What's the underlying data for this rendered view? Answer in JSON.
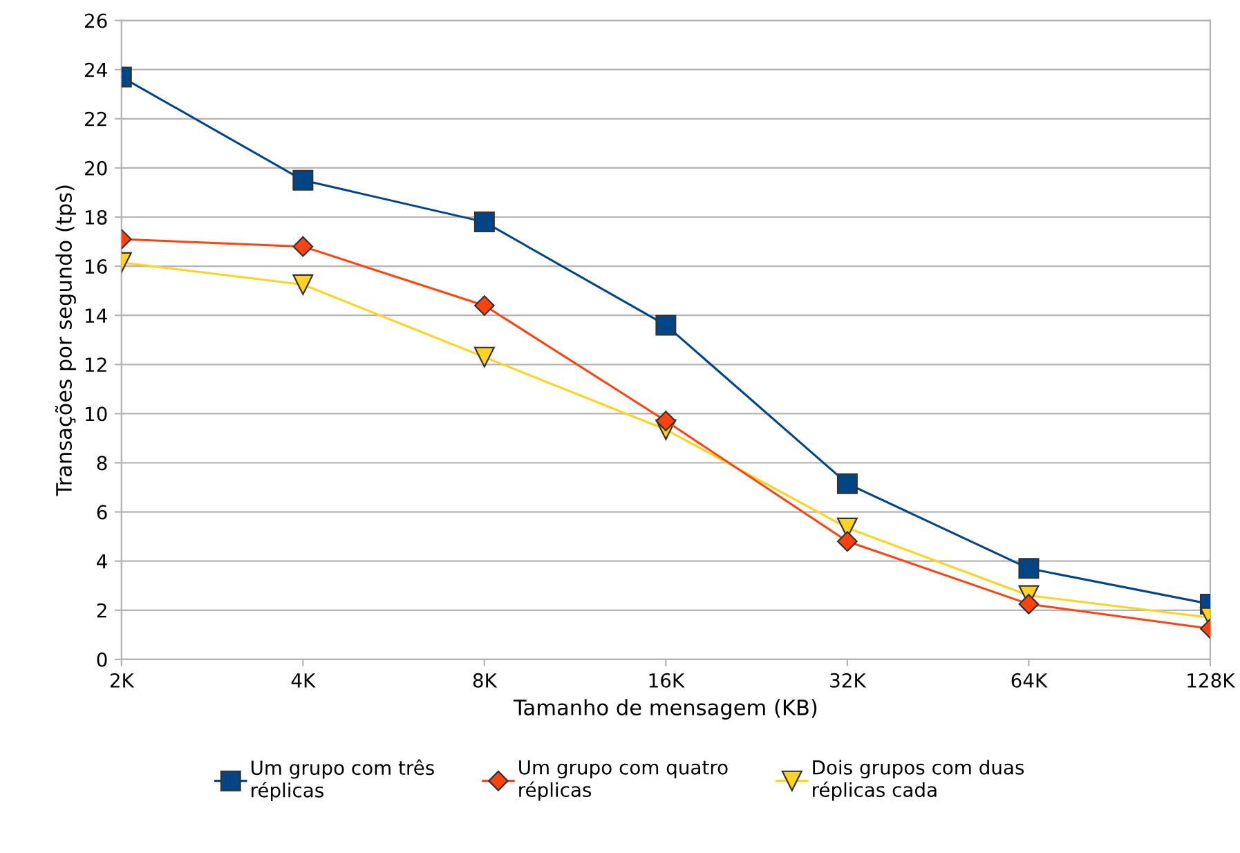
{
  "chart_data": {
    "type": "line",
    "xlabel": "Tamanho de mensagem (KB)",
    "ylabel": "Transações por segundo (tps)",
    "categories": [
      "2K",
      "4K",
      "8K",
      "16K",
      "32K",
      "64K",
      "128K"
    ],
    "series": [
      {
        "name": "Um grupo com três réplicas",
        "color": "#004586",
        "marker": "square",
        "values": [
          23.7,
          19.5,
          17.8,
          13.6,
          7.15,
          3.7,
          2.25
        ]
      },
      {
        "name": "Um grupo com quatro réplicas",
        "color": "#ff420e",
        "marker": "diamond",
        "values": [
          17.1,
          16.8,
          14.4,
          9.7,
          4.8,
          2.25,
          1.25
        ]
      },
      {
        "name": "Dois grupos com duas réplicas cada",
        "color": "#ffd320",
        "marker": "triangle",
        "values": [
          16.15,
          15.25,
          12.3,
          9.35,
          5.35,
          2.6,
          1.7
        ]
      }
    ],
    "ylim": [
      0,
      26
    ],
    "yticks": [
      0,
      2,
      4,
      6,
      8,
      10,
      12,
      14,
      16,
      18,
      20,
      22,
      24,
      26
    ],
    "grid": "y",
    "legend": "bottom",
    "line_style": "solid"
  }
}
